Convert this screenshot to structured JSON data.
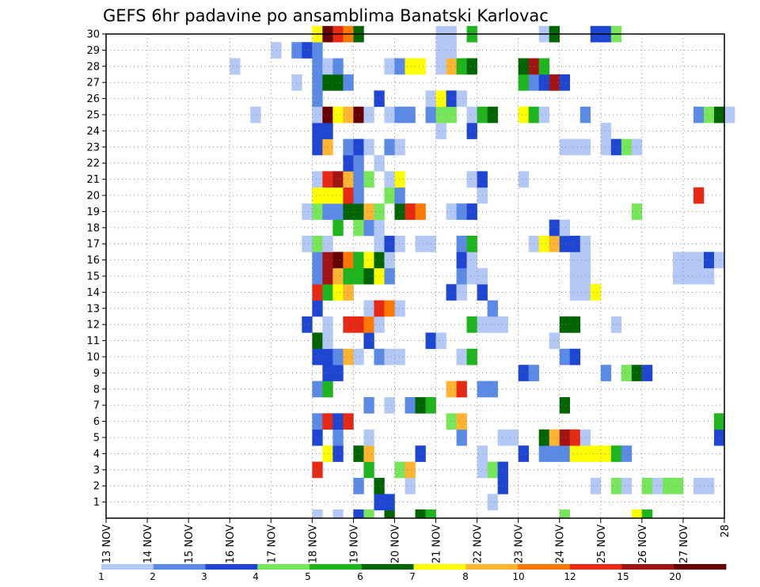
{
  "chart_data": {
    "type": "heatmap",
    "title": "GEFS 6hr padavine po ansamblima Banatski Karlovac",
    "xlabel": "",
    "ylabel": "",
    "x_ticks": [
      "13 NOV",
      "14 NOV",
      "15 NOV",
      "16 NOV",
      "17 NOV",
      "18 NOV",
      "19 NOV",
      "20 NOV",
      "21 NOV",
      "22 NOV",
      "23 NOV",
      "24 NOV",
      "25 NOV",
      "26 NOV",
      "27 NOV",
      "28"
    ],
    "x_range_days": [
      0,
      15
    ],
    "y_ticks": [
      "1",
      "2",
      "3",
      "4",
      "5",
      "6",
      "7",
      "8",
      "9",
      "10",
      "11",
      "12",
      "13",
      "14",
      "15",
      "16",
      "17",
      "18",
      "19",
      "20",
      "21",
      "22",
      "23",
      "24",
      "25",
      "26",
      "27",
      "28",
      "29",
      "30"
    ],
    "y_range": [
      0,
      30
    ],
    "grid": "dotted",
    "legend": {
      "position": "bottom",
      "levels": [
        "1",
        "2",
        "3",
        "4",
        "5",
        "6",
        "7",
        "8",
        "10",
        "12",
        "15",
        "20"
      ],
      "colors": [
        "#b4c8f5",
        "#5a8ae6",
        "#1e46d2",
        "#78e65a",
        "#1eb41e",
        "#006400",
        "#ffff00",
        "#ffb432",
        "#ff7800",
        "#e62814",
        "#a01414",
        "#640000"
      ]
    },
    "cells": [
      [
        0,
        5.0,
        0
      ],
      [
        0,
        5.5,
        0
      ],
      [
        0,
        6.0,
        2
      ],
      [
        0,
        6.25,
        3
      ],
      [
        0,
        6.75,
        5
      ],
      [
        0,
        7.5,
        5
      ],
      [
        0,
        7.75,
        4
      ],
      [
        0,
        11.0,
        3
      ],
      [
        0,
        12.75,
        6
      ],
      [
        0,
        13.0,
        4
      ],
      [
        1,
        6.5,
        2
      ],
      [
        1,
        6.75,
        2
      ],
      [
        1,
        9.25,
        0
      ],
      [
        2,
        6.0,
        1
      ],
      [
        2,
        6.5,
        5
      ],
      [
        2,
        7.25,
        0
      ],
      [
        2,
        9.5,
        2
      ],
      [
        2,
        11.75,
        0
      ],
      [
        2,
        12.25,
        3
      ],
      [
        2,
        12.5,
        0
      ],
      [
        2,
        13.0,
        3
      ],
      [
        2,
        13.25,
        0
      ],
      [
        2,
        13.5,
        3
      ],
      [
        2,
        13.75,
        3
      ],
      [
        2,
        14.25,
        0
      ],
      [
        2,
        14.5,
        0
      ],
      [
        3,
        5.0,
        9
      ],
      [
        3,
        6.25,
        4
      ],
      [
        3,
        7.0,
        3
      ],
      [
        3,
        7.25,
        7
      ],
      [
        3,
        9.0,
        0
      ],
      [
        3,
        9.25,
        3
      ],
      [
        3,
        9.5,
        2
      ],
      [
        4,
        5.25,
        6
      ],
      [
        4,
        5.5,
        2
      ],
      [
        4,
        6.0,
        5
      ],
      [
        4,
        6.25,
        7
      ],
      [
        4,
        7.5,
        2
      ],
      [
        4,
        9.0,
        0
      ],
      [
        4,
        10.0,
        2
      ],
      [
        4,
        10.5,
        1
      ],
      [
        4,
        10.75,
        1
      ],
      [
        4,
        11.0,
        1
      ],
      [
        4,
        11.25,
        6
      ],
      [
        4,
        11.5,
        6
      ],
      [
        4,
        11.75,
        6
      ],
      [
        4,
        12.0,
        6
      ],
      [
        4,
        12.25,
        4
      ],
      [
        4,
        12.5,
        1
      ],
      [
        5,
        5.0,
        2
      ],
      [
        5,
        5.5,
        1
      ],
      [
        5,
        6.25,
        0
      ],
      [
        5,
        8.5,
        1
      ],
      [
        5,
        9.5,
        0
      ],
      [
        5,
        9.75,
        0
      ],
      [
        5,
        10.5,
        5
      ],
      [
        5,
        10.75,
        7
      ],
      [
        5,
        11.0,
        10
      ],
      [
        5,
        11.25,
        9
      ],
      [
        5,
        11.5,
        0
      ],
      [
        5,
        14.75,
        2
      ],
      [
        6,
        5.0,
        1
      ],
      [
        6,
        5.25,
        9
      ],
      [
        6,
        5.5,
        2
      ],
      [
        6,
        5.75,
        9
      ],
      [
        6,
        8.25,
        3
      ],
      [
        6,
        8.5,
        7
      ],
      [
        6,
        14.75,
        4
      ],
      [
        7,
        6.25,
        1
      ],
      [
        7,
        6.75,
        0
      ],
      [
        7,
        7.25,
        1
      ],
      [
        7,
        7.5,
        5
      ],
      [
        7,
        7.75,
        4
      ],
      [
        7,
        11.0,
        5
      ],
      [
        8,
        5.0,
        1
      ],
      [
        8,
        5.25,
        4
      ],
      [
        8,
        8.25,
        7
      ],
      [
        8,
        8.5,
        9
      ],
      [
        8,
        9.0,
        1
      ],
      [
        8,
        9.25,
        1
      ],
      [
        9,
        5.25,
        2
      ],
      [
        9,
        5.5,
        2
      ],
      [
        9,
        10.0,
        2
      ],
      [
        9,
        10.25,
        1
      ],
      [
        9,
        12.0,
        1
      ],
      [
        9,
        12.5,
        3
      ],
      [
        9,
        12.75,
        5
      ],
      [
        9,
        13.0,
        2
      ],
      [
        10,
        5.0,
        2
      ],
      [
        10,
        5.25,
        2
      ],
      [
        10,
        5.5,
        1
      ],
      [
        10,
        5.75,
        7
      ],
      [
        10,
        6.0,
        0
      ],
      [
        10,
        6.5,
        1
      ],
      [
        10,
        6.75,
        0
      ],
      [
        10,
        7.0,
        0
      ],
      [
        10,
        8.5,
        0
      ],
      [
        10,
        8.75,
        4
      ],
      [
        10,
        11.0,
        1
      ],
      [
        10,
        11.25,
        2
      ],
      [
        11,
        5.0,
        5
      ],
      [
        11,
        5.25,
        0
      ],
      [
        11,
        6.25,
        2
      ],
      [
        11,
        7.75,
        2
      ],
      [
        11,
        8.0,
        0
      ],
      [
        11,
        10.75,
        0
      ],
      [
        12,
        4.75,
        2
      ],
      [
        12,
        5.25,
        0
      ],
      [
        12,
        5.75,
        9
      ],
      [
        12,
        6.0,
        9
      ],
      [
        12,
        6.25,
        8
      ],
      [
        12,
        6.5,
        0
      ],
      [
        12,
        8.75,
        4
      ],
      [
        12,
        9.0,
        0
      ],
      [
        12,
        9.25,
        0
      ],
      [
        12,
        9.5,
        0
      ],
      [
        12,
        11.0,
        5
      ],
      [
        12,
        11.25,
        5
      ],
      [
        12,
        12.25,
        0
      ],
      [
        13,
        5.0,
        2
      ],
      [
        13,
        6.25,
        0
      ],
      [
        13,
        6.5,
        9
      ],
      [
        13,
        6.75,
        8
      ],
      [
        13,
        7.0,
        0
      ],
      [
        13,
        9.25,
        1
      ],
      [
        14,
        5.0,
        9
      ],
      [
        14,
        5.25,
        4
      ],
      [
        14,
        5.5,
        6
      ],
      [
        14,
        5.75,
        7
      ],
      [
        14,
        8.25,
        2
      ],
      [
        14,
        8.5,
        0
      ],
      [
        14,
        9.0,
        2
      ],
      [
        14,
        11.25,
        0
      ],
      [
        14,
        11.5,
        0
      ],
      [
        14,
        11.75,
        6
      ],
      [
        15,
        5.0,
        1
      ],
      [
        15,
        5.25,
        10
      ],
      [
        15,
        5.5,
        7
      ],
      [
        15,
        5.75,
        4
      ],
      [
        15,
        6.0,
        4
      ],
      [
        15,
        6.25,
        5
      ],
      [
        15,
        6.5,
        6
      ],
      [
        15,
        6.75,
        1
      ],
      [
        15,
        8.5,
        1
      ],
      [
        15,
        8.75,
        0
      ],
      [
        15,
        9.0,
        0
      ],
      [
        15,
        11.25,
        0
      ],
      [
        15,
        11.5,
        0
      ],
      [
        15,
        13.75,
        0
      ],
      [
        15,
        14.0,
        0
      ],
      [
        15,
        14.25,
        0
      ],
      [
        15,
        14.5,
        0
      ],
      [
        16,
        5.0,
        1
      ],
      [
        16,
        5.25,
        10
      ],
      [
        16,
        5.5,
        11
      ],
      [
        16,
        5.75,
        8
      ],
      [
        16,
        6.0,
        4
      ],
      [
        16,
        6.25,
        6
      ],
      [
        16,
        6.5,
        5
      ],
      [
        16,
        6.75,
        0
      ],
      [
        16,
        8.5,
        2
      ],
      [
        16,
        8.75,
        0
      ],
      [
        16,
        11.25,
        0
      ],
      [
        16,
        11.5,
        0
      ],
      [
        16,
        13.75,
        0
      ],
      [
        16,
        14.0,
        0
      ],
      [
        16,
        14.25,
        0
      ],
      [
        16,
        14.5,
        2
      ],
      [
        16,
        14.75,
        0
      ],
      [
        17,
        4.75,
        0
      ],
      [
        17,
        5.0,
        3
      ],
      [
        17,
        5.25,
        0
      ],
      [
        17,
        6.5,
        0
      ],
      [
        17,
        6.75,
        2
      ],
      [
        17,
        7.0,
        0
      ],
      [
        17,
        7.5,
        0
      ],
      [
        17,
        7.75,
        0
      ],
      [
        17,
        8.5,
        1
      ],
      [
        17,
        8.75,
        4
      ],
      [
        17,
        10.25,
        0
      ],
      [
        17,
        10.5,
        6
      ],
      [
        17,
        10.75,
        7
      ],
      [
        17,
        11.0,
        2
      ],
      [
        17,
        11.25,
        2
      ],
      [
        17,
        11.5,
        0
      ],
      [
        18,
        5.5,
        4
      ],
      [
        18,
        6.0,
        3
      ],
      [
        18,
        6.25,
        1
      ],
      [
        18,
        6.5,
        0
      ],
      [
        18,
        10.75,
        2
      ],
      [
        18,
        11.0,
        0
      ],
      [
        19,
        4.75,
        0
      ],
      [
        19,
        5.0,
        3
      ],
      [
        19,
        5.25,
        1
      ],
      [
        19,
        5.5,
        1
      ],
      [
        19,
        5.75,
        5
      ],
      [
        19,
        6.0,
        5
      ],
      [
        19,
        6.25,
        7
      ],
      [
        19,
        6.5,
        3
      ],
      [
        19,
        7.0,
        5
      ],
      [
        19,
        7.25,
        9
      ],
      [
        19,
        7.5,
        8
      ],
      [
        19,
        8.25,
        0
      ],
      [
        19,
        8.5,
        1
      ],
      [
        19,
        8.75,
        2
      ],
      [
        19,
        12.75,
        3
      ],
      [
        20,
        5.0,
        6
      ],
      [
        20,
        5.25,
        6
      ],
      [
        20,
        5.5,
        6
      ],
      [
        20,
        5.75,
        9
      ],
      [
        20,
        6.0,
        1
      ],
      [
        20,
        6.75,
        3
      ],
      [
        20,
        7.0,
        1
      ],
      [
        20,
        9.0,
        0
      ],
      [
        20,
        14.25,
        9
      ],
      [
        21,
        5.0,
        0
      ],
      [
        21,
        5.25,
        9
      ],
      [
        21,
        5.5,
        10
      ],
      [
        21,
        5.75,
        7
      ],
      [
        21,
        6.0,
        1
      ],
      [
        21,
        6.25,
        3
      ],
      [
        21,
        6.75,
        0
      ],
      [
        21,
        7.0,
        6
      ],
      [
        21,
        8.75,
        0
      ],
      [
        21,
        9.0,
        2
      ],
      [
        21,
        10.0,
        0
      ],
      [
        22,
        5.75,
        2
      ],
      [
        22,
        6.0,
        1
      ],
      [
        22,
        6.5,
        0
      ],
      [
        23,
        5.0,
        2
      ],
      [
        23,
        5.25,
        7
      ],
      [
        23,
        5.75,
        1
      ],
      [
        23,
        6.0,
        2
      ],
      [
        23,
        6.25,
        0
      ],
      [
        23,
        6.75,
        1
      ],
      [
        23,
        7.0,
        0
      ],
      [
        23,
        11.0,
        0
      ],
      [
        23,
        11.25,
        0
      ],
      [
        23,
        11.5,
        0
      ],
      [
        23,
        12.0,
        0
      ],
      [
        23,
        12.25,
        2
      ],
      [
        23,
        12.5,
        3
      ],
      [
        23,
        12.75,
        0
      ],
      [
        24,
        5.0,
        2
      ],
      [
        24,
        5.25,
        2
      ],
      [
        24,
        8.0,
        0
      ],
      [
        24,
        8.75,
        2
      ],
      [
        24,
        12.0,
        0
      ],
      [
        25,
        3.5,
        0
      ],
      [
        25,
        5.0,
        0
      ],
      [
        25,
        5.25,
        11
      ],
      [
        25,
        5.5,
        6
      ],
      [
        25,
        5.75,
        7
      ],
      [
        25,
        6.0,
        11
      ],
      [
        25,
        6.25,
        0
      ],
      [
        25,
        6.75,
        0
      ],
      [
        25,
        7.0,
        1
      ],
      [
        25,
        7.25,
        1
      ],
      [
        25,
        7.75,
        1
      ],
      [
        25,
        8.0,
        3
      ],
      [
        25,
        8.25,
        3
      ],
      [
        25,
        8.75,
        0
      ],
      [
        25,
        9.0,
        4
      ],
      [
        25,
        9.25,
        5
      ],
      [
        25,
        10.0,
        6
      ],
      [
        25,
        10.25,
        4
      ],
      [
        25,
        10.5,
        0
      ],
      [
        25,
        11.5,
        1
      ],
      [
        25,
        14.25,
        1
      ],
      [
        25,
        14.5,
        3
      ],
      [
        25,
        14.75,
        5
      ],
      [
        25,
        15.0,
        0
      ],
      [
        26,
        5.0,
        1
      ],
      [
        26,
        6.5,
        2
      ],
      [
        26,
        7.75,
        0
      ],
      [
        26,
        8.0,
        6
      ],
      [
        26,
        8.25,
        2
      ],
      [
        26,
        8.5,
        0
      ],
      [
        27,
        4.5,
        0
      ],
      [
        27,
        5.0,
        1
      ],
      [
        27,
        5.25,
        5
      ],
      [
        27,
        5.5,
        5
      ],
      [
        27,
        5.75,
        1
      ],
      [
        27,
        10.0,
        4
      ],
      [
        27,
        10.25,
        1
      ],
      [
        27,
        10.5,
        2
      ],
      [
        27,
        10.75,
        10
      ],
      [
        27,
        11.0,
        2
      ],
      [
        28,
        3.0,
        0
      ],
      [
        28,
        5.0,
        1
      ],
      [
        28,
        5.25,
        0
      ],
      [
        28,
        5.5,
        1
      ],
      [
        28,
        6.75,
        0
      ],
      [
        28,
        7.0,
        1
      ],
      [
        28,
        7.25,
        6
      ],
      [
        28,
        7.5,
        6
      ],
      [
        28,
        8.0,
        0
      ],
      [
        28,
        8.25,
        7
      ],
      [
        28,
        8.5,
        4
      ],
      [
        28,
        8.75,
        5
      ],
      [
        28,
        10.0,
        5
      ],
      [
        28,
        10.25,
        10
      ],
      [
        28,
        10.5,
        4
      ],
      [
        29,
        4.0,
        0
      ],
      [
        29,
        4.5,
        1
      ],
      [
        29,
        4.75,
        2
      ],
      [
        29,
        5.0,
        1
      ],
      [
        29,
        8.0,
        0
      ],
      [
        29,
        8.25,
        0
      ],
      [
        30,
        5.0,
        6
      ],
      [
        30,
        5.25,
        11
      ],
      [
        30,
        5.5,
        9
      ],
      [
        30,
        5.75,
        8
      ],
      [
        30,
        6.0,
        5
      ],
      [
        30,
        8.0,
        0
      ],
      [
        30,
        8.25,
        0
      ],
      [
        30,
        8.75,
        4
      ],
      [
        30,
        10.5,
        0
      ],
      [
        30,
        10.75,
        5
      ],
      [
        30,
        11.75,
        2
      ],
      [
        30,
        12.0,
        2
      ],
      [
        30,
        12.25,
        3
      ]
    ]
  }
}
